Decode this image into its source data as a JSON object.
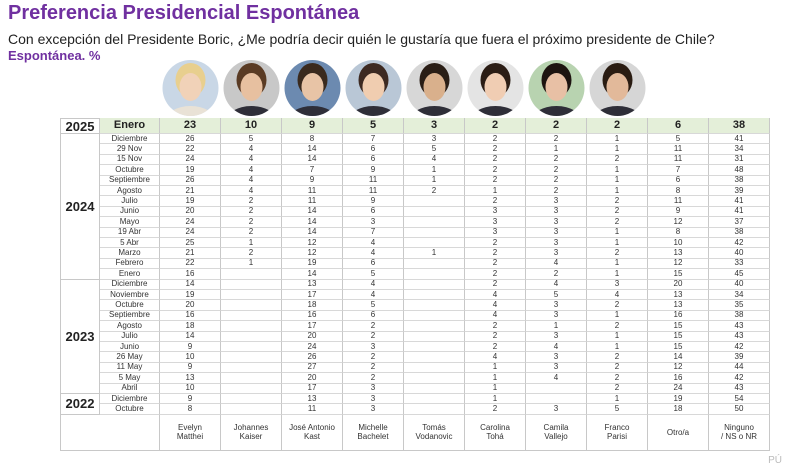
{
  "title": "Preferencia Presidencial Espontánea",
  "subtitle": "Con excepción del Presidente Boric, ¿Me podría decir quién le gustaría que fuera el próximo presidente de Chile?",
  "note": "Espontánea. %",
  "watermark": "PÚ",
  "candidates": [
    [
      "Evelyn",
      "Matthei"
    ],
    [
      "Johannes",
      "Kaiser"
    ],
    [
      "José Antonio",
      "Kast"
    ],
    [
      "Michelle",
      "Bachelet"
    ],
    [
      "Tomás",
      "Vodanovic"
    ],
    [
      "Carolina",
      "Tohá"
    ],
    [
      "Camila",
      "Vallejo"
    ],
    [
      "Franco",
      "Parisi"
    ],
    [
      "Otro/a"
    ],
    [
      "Ninguno",
      "/ NS o NR"
    ]
  ],
  "groups": [
    {
      "year": "2025",
      "rows": [
        {
          "label": "Enero",
          "values": [
            23,
            10,
            9,
            5,
            3,
            2,
            2,
            2,
            6,
            38
          ]
        }
      ]
    },
    {
      "year": "2024",
      "rows": [
        {
          "label": "Diciembre",
          "values": [
            26,
            5,
            8,
            7,
            3,
            2,
            2,
            1,
            5,
            41
          ]
        },
        {
          "label": "29 Nov",
          "values": [
            22,
            4,
            14,
            6,
            5,
            2,
            1,
            1,
            11,
            34
          ]
        },
        {
          "label": "15 Nov",
          "values": [
            24,
            4,
            14,
            6,
            4,
            2,
            2,
            2,
            11,
            31
          ]
        },
        {
          "label": "Octubre",
          "values": [
            19,
            4,
            7,
            9,
            1,
            2,
            2,
            1,
            7,
            48
          ]
        },
        {
          "label": "Septiembre",
          "values": [
            26,
            4,
            9,
            11,
            1,
            2,
            2,
            1,
            6,
            38
          ]
        },
        {
          "label": "Agosto",
          "values": [
            21,
            4,
            11,
            11,
            2,
            1,
            2,
            1,
            8,
            39
          ]
        },
        {
          "label": "Julio",
          "values": [
            19,
            2,
            11,
            9,
            null,
            2,
            3,
            2,
            11,
            41
          ]
        },
        {
          "label": "Junio",
          "values": [
            20,
            2,
            14,
            6,
            null,
            3,
            3,
            2,
            9,
            41
          ]
        },
        {
          "label": "Mayo",
          "values": [
            24,
            2,
            14,
            3,
            null,
            3,
            3,
            2,
            12,
            37
          ]
        },
        {
          "label": "19 Abr",
          "values": [
            24,
            2,
            14,
            7,
            null,
            3,
            3,
            1,
            8,
            38
          ]
        },
        {
          "label": "5 Abr",
          "values": [
            25,
            1,
            12,
            4,
            null,
            2,
            3,
            1,
            10,
            42
          ]
        },
        {
          "label": "Marzo",
          "values": [
            21,
            2,
            12,
            4,
            1,
            2,
            3,
            2,
            13,
            40
          ]
        },
        {
          "label": "Febrero",
          "values": [
            22,
            1,
            19,
            6,
            null,
            2,
            4,
            1,
            12,
            33
          ]
        },
        {
          "label": "Enero",
          "values": [
            16,
            null,
            14,
            5,
            null,
            2,
            2,
            1,
            15,
            45
          ]
        }
      ]
    },
    {
      "year": "2023",
      "rows": [
        {
          "label": "Diciembre",
          "values": [
            14,
            null,
            13,
            4,
            null,
            2,
            4,
            3,
            20,
            40
          ]
        },
        {
          "label": "Noviembre",
          "values": [
            19,
            null,
            17,
            4,
            null,
            4,
            5,
            4,
            13,
            34
          ]
        },
        {
          "label": "Octubre",
          "values": [
            20,
            null,
            18,
            5,
            null,
            4,
            3,
            2,
            13,
            35
          ]
        },
        {
          "label": "Septiembre",
          "values": [
            16,
            null,
            16,
            6,
            null,
            4,
            3,
            1,
            16,
            38
          ]
        },
        {
          "label": "Agosto",
          "values": [
            18,
            null,
            17,
            2,
            null,
            2,
            1,
            2,
            15,
            43
          ]
        },
        {
          "label": "Julio",
          "values": [
            14,
            null,
            20,
            2,
            null,
            2,
            3,
            1,
            15,
            43
          ]
        },
        {
          "label": "Junio",
          "values": [
            9,
            null,
            24,
            3,
            null,
            2,
            4,
            1,
            15,
            42
          ]
        },
        {
          "label": "26 May",
          "values": [
            10,
            null,
            26,
            2,
            null,
            4,
            3,
            2,
            14,
            39
          ]
        },
        {
          "label": "11 May",
          "values": [
            9,
            null,
            27,
            2,
            null,
            1,
            3,
            2,
            12,
            44
          ]
        },
        {
          "label": "5 May",
          "values": [
            13,
            null,
            20,
            2,
            null,
            1,
            4,
            2,
            16,
            42
          ]
        },
        {
          "label": "Abril",
          "values": [
            10,
            null,
            17,
            3,
            null,
            1,
            null,
            2,
            24,
            43
          ]
        }
      ]
    },
    {
      "year": "2022",
      "rows": [
        {
          "label": "Diciembre",
          "values": [
            9,
            null,
            13,
            3,
            null,
            1,
            null,
            1,
            19,
            54
          ]
        },
        {
          "label": "Octubre",
          "values": [
            8,
            null,
            11,
            3,
            null,
            2,
            3,
            5,
            18,
            50
          ]
        }
      ]
    }
  ]
}
